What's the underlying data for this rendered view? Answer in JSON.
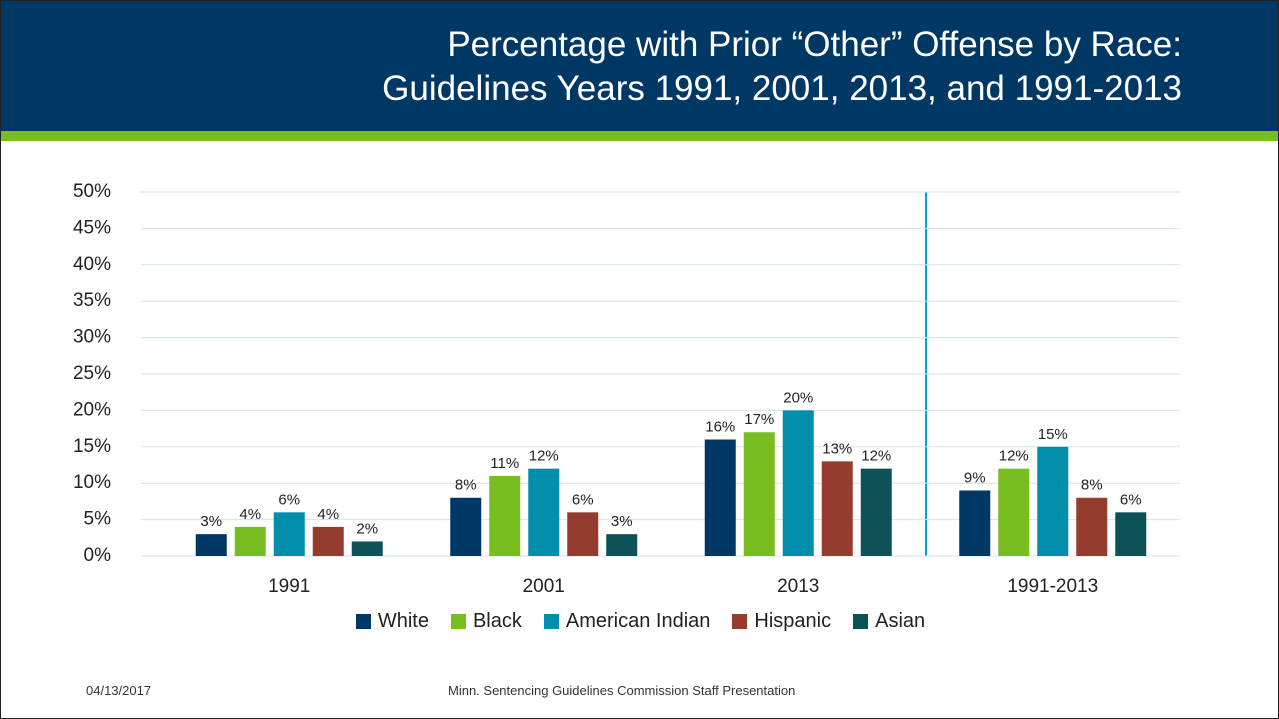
{
  "title": [
    "Percentage with Prior “Other” Offense by Race:",
    "Guidelines Years 1991, 2001, 2013, and 1991-2013"
  ],
  "date": "04/13/2017",
  "footer": "Minn. Sentencing Guidelines Commission Staff Presentation",
  "chart_data": {
    "type": "bar",
    "categories": [
      "1991",
      "2001",
      "2013",
      "1991-2013"
    ],
    "series": [
      {
        "name": "White",
        "color": "#003865",
        "values": [
          3,
          8,
          16,
          9
        ],
        "value_labels": [
          "3%",
          "8%",
          "16%",
          "9%"
        ]
      },
      {
        "name": "Black",
        "color": "#78be21",
        "values": [
          4,
          11,
          17,
          12
        ],
        "value_labels": [
          "4%",
          "11%",
          "17%",
          "12%"
        ]
      },
      {
        "name": "American Indian",
        "color": "#008eaa",
        "values": [
          6,
          12,
          20,
          15
        ],
        "value_labels": [
          "6%",
          "12%",
          "20%",
          "15%"
        ]
      },
      {
        "name": "Hispanic",
        "color": "#953c2f",
        "values": [
          4,
          6,
          13,
          8
        ],
        "value_labels": [
          "4%",
          "6%",
          "13%",
          "8%"
        ]
      },
      {
        "name": "Asian",
        "color": "#0d5257",
        "values": [
          2,
          3,
          12,
          6
        ],
        "value_labels": [
          "2%",
          "3%",
          "12%",
          "6%"
        ]
      }
    ],
    "ylim": [
      0,
      50
    ],
    "yticks": [
      {
        "value": 0,
        "label": "0%"
      },
      {
        "value": 5,
        "label": "5%"
      },
      {
        "value": 10,
        "label": "10%"
      },
      {
        "value": 15,
        "label": "15%"
      },
      {
        "value": 20,
        "label": "20%"
      },
      {
        "value": 25,
        "label": "25%"
      },
      {
        "value": 30,
        "label": "30%"
      },
      {
        "value": 35,
        "label": "35%"
      },
      {
        "value": 40,
        "label": "40%"
      },
      {
        "value": 45,
        "label": "45%"
      },
      {
        "value": 50,
        "label": "50%"
      }
    ],
    "grid": true,
    "legend": "bottom"
  }
}
